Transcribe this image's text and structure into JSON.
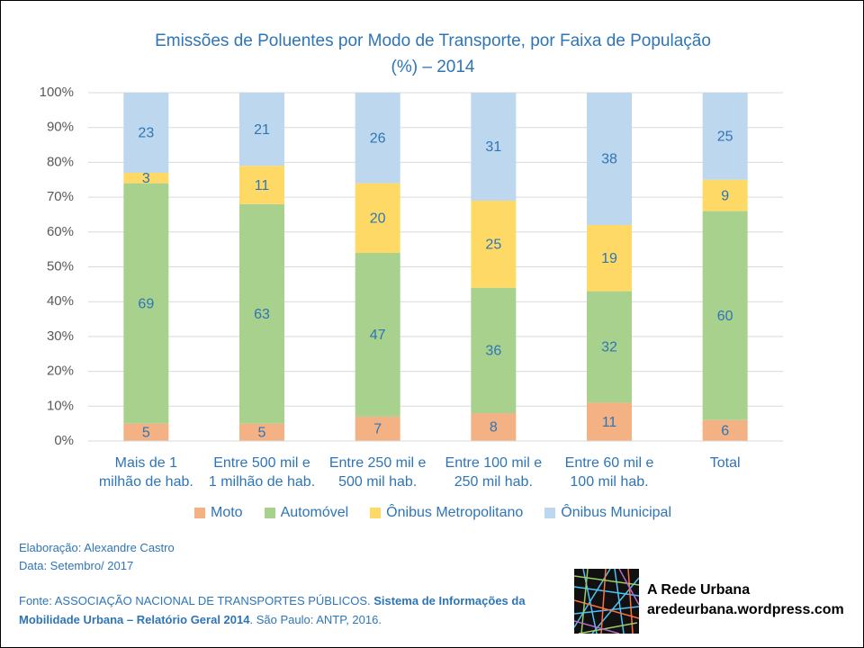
{
  "chart_data": {
    "type": "bar",
    "stacked": true,
    "title": "Emissões de Poluentes por Modo de Transporte, por Faixa de População\n(%) – 2014",
    "categories": [
      "Mais de 1\nmilhão de hab.",
      "Entre 500 mil e\n1 milhão de hab.",
      "Entre 250 mil e\n500 mil hab.",
      "Entre 100 mil e\n250 mil hab.",
      "Entre 60 mil e\n100 mil hab.",
      "Total"
    ],
    "series": [
      {
        "name": "Moto",
        "color": "#f4b183",
        "values": [
          5,
          5,
          7,
          8,
          11,
          6
        ]
      },
      {
        "name": "Automóvel",
        "color": "#a9d18e",
        "values": [
          69,
          63,
          47,
          36,
          32,
          60
        ]
      },
      {
        "name": "Ônibus Metropolitano",
        "color": "#ffd966",
        "values": [
          3,
          11,
          20,
          25,
          19,
          9
        ]
      },
      {
        "name": "Ônibus Municipal",
        "color": "#bdd7ee",
        "values": [
          23,
          21,
          26,
          31,
          38,
          25
        ]
      }
    ],
    "ylim": [
      0,
      100
    ],
    "yticks": [
      {
        "value": 0,
        "label": "0%"
      },
      {
        "value": 10,
        "label": "10%"
      },
      {
        "value": 20,
        "label": "20%"
      },
      {
        "value": 30,
        "label": "30%"
      },
      {
        "value": 40,
        "label": "40%"
      },
      {
        "value": 50,
        "label": "50%"
      },
      {
        "value": 60,
        "label": "60%"
      },
      {
        "value": 70,
        "label": "70%"
      },
      {
        "value": 80,
        "label": "80%"
      },
      {
        "value": 90,
        "label": "90%"
      },
      {
        "value": 100,
        "label": "100%"
      }
    ],
    "grid": true,
    "legend": "bottom"
  },
  "footer": {
    "credits": [
      "Elaboração: Alexandre Castro",
      "Data: Setembro/ 2017"
    ],
    "source": [
      {
        "text": "Fonte: ASSOCIAÇÃO NACIONAL DE TRANSPORTES PÚBLICOS. ",
        "bold": false
      },
      {
        "text": "Sistema de Informações da Mobilidade Urbana – Relatório Geral 2014",
        "bold": true
      },
      {
        "text": ". São Paulo: ANTP, 2016.",
        "bold": false
      }
    ]
  },
  "logo": {
    "title": "A Rede Urbana",
    "url": "aredeurbana.wordpress.com"
  }
}
